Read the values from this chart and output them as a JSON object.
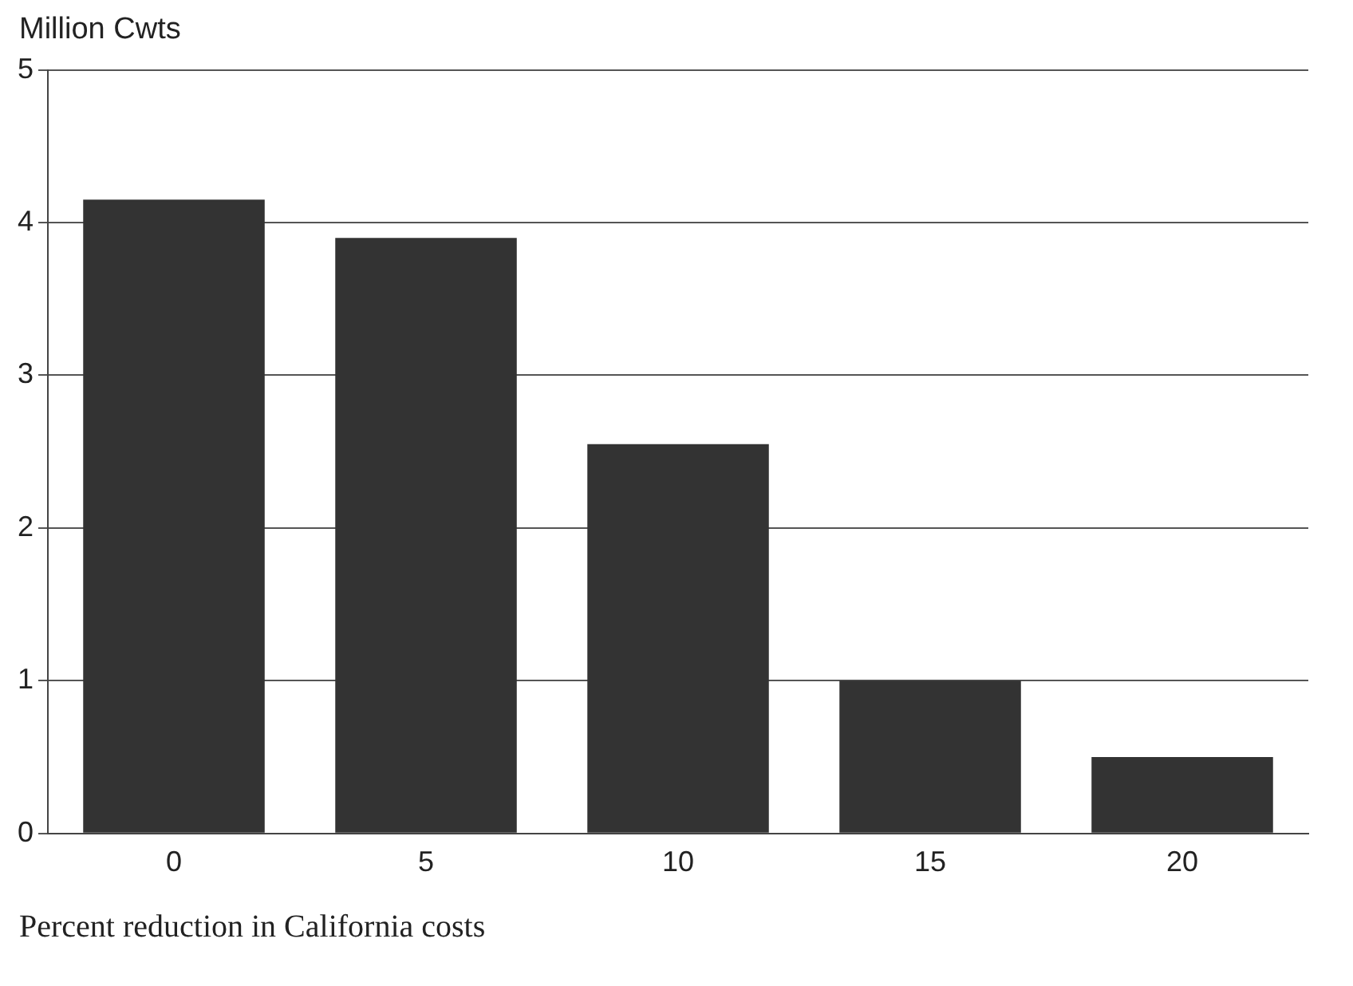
{
  "chart_data": {
    "type": "bar",
    "ylabel": "Million Cwts",
    "xlabel": "Percent reduction in California costs",
    "categories": [
      "0",
      "5",
      "10",
      "15",
      "20"
    ],
    "values": [
      4.15,
      3.9,
      2.55,
      1.0,
      0.5
    ],
    "color": "#333333",
    "ylim": [
      0,
      5
    ],
    "yticks": [
      0,
      1,
      2,
      3,
      4,
      5
    ],
    "grid": "y"
  }
}
